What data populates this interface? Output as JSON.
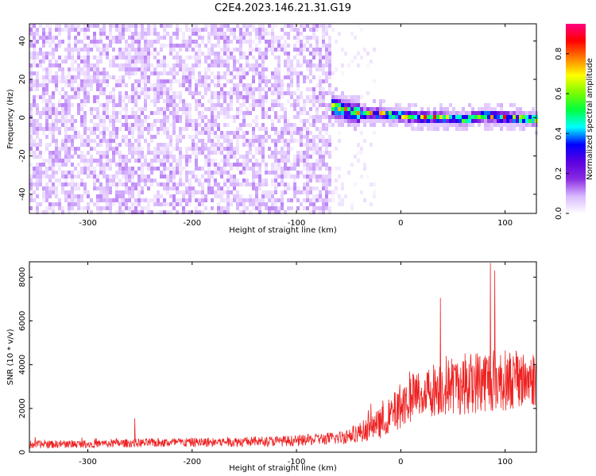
{
  "title": "C2E4.2023.146.21.31.G19",
  "chart_data": [
    {
      "type": "heatmap",
      "xlabel": "Height of straight line (km)",
      "ylabel": "Frequency (Hz)",
      "xlim": [
        -356,
        130
      ],
      "ylim": [
        -50,
        49
      ],
      "xticks": [
        -300,
        -200,
        -100,
        0,
        100
      ],
      "yticks": [
        -40,
        -20,
        0,
        20,
        40
      ],
      "colorbar": {
        "label": "Normalized spectral amplitude",
        "range": [
          0.0,
          0.95
        ],
        "ticks": [
          0.0,
          0.2,
          0.4,
          0.6,
          0.8
        ],
        "colormap": [
          "#ffffff",
          "#d9b8ff",
          "#8a2be2",
          "#5a00e0",
          "#0000ff",
          "#00ffff",
          "#00ff40",
          "#7cfc00",
          "#ffff00",
          "#ff8000",
          "#ff0000",
          "#ff0080"
        ]
      },
      "regions": [
        {
          "x_range": [
            -356,
            -68
          ],
          "description_level": "noise",
          "amplitude_range": [
            0.02,
            0.12
          ]
        },
        {
          "x_range": [
            -68,
            -25
          ],
          "description_level": "sparse noise",
          "amplitude_range": [
            0.0,
            0.04
          ]
        },
        {
          "x_range": [
            -68,
            130
          ],
          "signal_center_hz": [
            {
              "x": -68,
              "y": 6
            },
            {
              "x": -55,
              "y": 4
            },
            {
              "x": -40,
              "y": 2
            },
            {
              "x": -20,
              "y": 2
            },
            {
              "x": 0,
              "y": 1
            },
            {
              "x": 20,
              "y": 0
            },
            {
              "x": 40,
              "y": 0
            },
            {
              "x": 60,
              "y": -1
            },
            {
              "x": 80,
              "y": 1
            },
            {
              "x": 100,
              "y": 0
            },
            {
              "x": 130,
              "y": -1
            }
          ],
          "peak_amplitude": [
            0.3,
            0.95
          ]
        }
      ]
    },
    {
      "type": "line",
      "xlabel": "Height of straight line (km)",
      "ylabel": "SNR (10 * v/v)",
      "xlim": [
        -356,
        130
      ],
      "ylim": [
        0,
        8700
      ],
      "xticks": [
        -300,
        -200,
        -100,
        0,
        100
      ],
      "yticks": [
        0,
        2000,
        4000,
        6000,
        8000
      ],
      "series": [
        {
          "color": "#ee2222",
          "x": [
            -356,
            -300,
            -250,
            -200,
            -150,
            -100,
            -60,
            -40,
            -20,
            0,
            10,
            20,
            40,
            60,
            80,
            100,
            120,
            130
          ],
          "y": [
            350,
            380,
            420,
            450,
            480,
            520,
            650,
            900,
            1300,
            2100,
            2500,
            2700,
            3000,
            3100,
            3300,
            3300,
            3300,
            3400
          ],
          "spread": [
            180,
            180,
            200,
            220,
            230,
            250,
            300,
            450,
            700,
            1000,
            1100,
            1200,
            1300,
            1400,
            1500,
            1400,
            1300,
            1300
          ]
        }
      ],
      "spikes": [
        {
          "x": -255,
          "y": 1550
        },
        {
          "x": 38,
          "y": 7050
        },
        {
          "x": 86,
          "y": 8650
        },
        {
          "x": 90,
          "y": 8300
        }
      ]
    }
  ]
}
